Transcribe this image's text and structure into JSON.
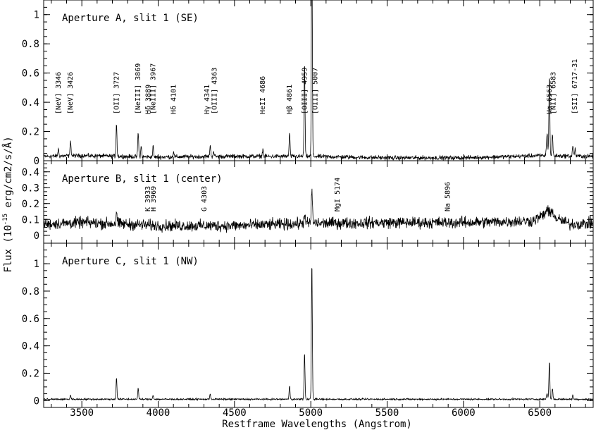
{
  "chart_data": {
    "type": "line",
    "xlabel": "Restframe Wavelengths (Angstrom)",
    "ylabel": "Flux (10",
    "ylabel_exp": "-15",
    "ylabel_units": " erg/cm2/s/Å)",
    "xlim": [
      3250,
      6850
    ],
    "xticks": [
      3500,
      4000,
      4500,
      5000,
      5500,
      6000,
      6500
    ],
    "continuum_style": "noisy",
    "panels": [
      {
        "title": "Aperture A, slit 1 (SE)",
        "ylim": [
          0,
          1.1
        ],
        "yticks": [
          0,
          0.2,
          0.4,
          0.6,
          0.8,
          1
        ],
        "continuum": [
          [
            3250,
            0.03
          ],
          [
            3500,
            0.035
          ],
          [
            4000,
            0.025
          ],
          [
            4500,
            0.03
          ],
          [
            5000,
            0.03
          ],
          [
            5500,
            0.02
          ],
          [
            6000,
            0.02
          ],
          [
            6500,
            0.035
          ],
          [
            6850,
            0.03
          ]
        ],
        "noise": 0.012,
        "emission": [
          [
            3346,
            0.05,
            3
          ],
          [
            3426,
            0.11,
            3
          ],
          [
            3727,
            0.23,
            3
          ],
          [
            3869,
            0.17,
            3
          ],
          [
            3889,
            0.07,
            3
          ],
          [
            3967,
            0.07,
            3
          ],
          [
            4101,
            0.04,
            3
          ],
          [
            4341,
            0.08,
            3
          ],
          [
            4363,
            0.04,
            3
          ],
          [
            4686,
            0.05,
            3
          ],
          [
            4861,
            0.16,
            3
          ],
          [
            4959,
            0.64,
            3
          ],
          [
            5007,
            1.6,
            3
          ],
          [
            6548,
            0.15,
            4
          ],
          [
            6563,
            0.55,
            3
          ],
          [
            6583,
            0.15,
            3
          ],
          [
            6717,
            0.07,
            3
          ],
          [
            6731,
            0.05,
            3
          ]
        ],
        "labels": [
          {
            "text": "[NeV] 3346",
            "x": 3346
          },
          {
            "text": "[NeV] 3426",
            "x": 3426
          },
          {
            "text": "[OII] 3727",
            "x": 3727
          },
          {
            "text": "[NeIII] 3869",
            "x": 3869
          },
          {
            "text": "Hδ 3889",
            "x": 3935
          },
          {
            "text": "[NeIII] 3967",
            "x": 3967
          },
          {
            "text": "Hδ 4101",
            "x": 4101
          },
          {
            "text": "Hγ 4341",
            "x": 4320
          },
          {
            "text": "[OIII] 4363",
            "x": 4370
          },
          {
            "text": "HeII 4686",
            "x": 4686
          },
          {
            "text": "Hβ 4861",
            "x": 4861
          },
          {
            "text": "[OIII] 4959",
            "x": 4959
          },
          {
            "text": "[OIII] 5007",
            "x": 5030
          },
          {
            "text": "Hα 6563",
            "x": 6563
          },
          {
            "text": "[NII] 6583",
            "x": 6590
          },
          {
            "text": "[SII] 6717-31",
            "x": 6730
          }
        ]
      },
      {
        "title": "Aperture B, slit 1 (center)",
        "ylim": [
          -0.05,
          0.47
        ],
        "yticks": [
          0,
          0.1,
          0.2,
          0.3,
          0.4
        ],
        "continuum": [
          [
            3250,
            0.07
          ],
          [
            3500,
            0.08
          ],
          [
            3800,
            0.07
          ],
          [
            4000,
            0.06
          ],
          [
            4500,
            0.06
          ],
          [
            5000,
            0.075
          ],
          [
            5500,
            0.08
          ],
          [
            6000,
            0.08
          ],
          [
            6450,
            0.09
          ],
          [
            6550,
            0.14
          ],
          [
            6620,
            0.1
          ],
          [
            6700,
            0.07
          ],
          [
            6850,
            0.075
          ]
        ],
        "noise": 0.03,
        "emission": [
          [
            3727,
            0.08,
            3
          ],
          [
            4959,
            0.06,
            4
          ],
          [
            5007,
            0.2,
            4
          ],
          [
            6548,
            0.03,
            6
          ],
          [
            6583,
            0.04,
            6
          ]
        ],
        "labels": [
          {
            "text": "K 3933",
            "x": 3933
          },
          {
            "text": "H 3969",
            "x": 3969
          },
          {
            "text": "G 4303",
            "x": 4303
          },
          {
            "text": "MgI 5174",
            "x": 5174
          },
          {
            "text": "Na 5896",
            "x": 5896
          }
        ]
      },
      {
        "title": "Aperture C, slit 1 (NW)",
        "ylim": [
          -0.05,
          1.15
        ],
        "yticks": [
          0,
          0.2,
          0.4,
          0.6,
          0.8,
          1
        ],
        "continuum": [
          [
            3250,
            0.01
          ],
          [
            6850,
            0.01
          ]
        ],
        "noise": 0.005,
        "emission": [
          [
            3426,
            0.03,
            3
          ],
          [
            3727,
            0.16,
            3
          ],
          [
            3869,
            0.08,
            3
          ],
          [
            3967,
            0.03,
            3
          ],
          [
            4341,
            0.04,
            3
          ],
          [
            4861,
            0.1,
            3
          ],
          [
            4959,
            0.34,
            3
          ],
          [
            5007,
            1.01,
            3
          ],
          [
            6548,
            0.04,
            4
          ],
          [
            6563,
            0.28,
            3
          ],
          [
            6583,
            0.08,
            3
          ],
          [
            6717,
            0.03,
            3
          ]
        ],
        "labels": []
      }
    ]
  }
}
